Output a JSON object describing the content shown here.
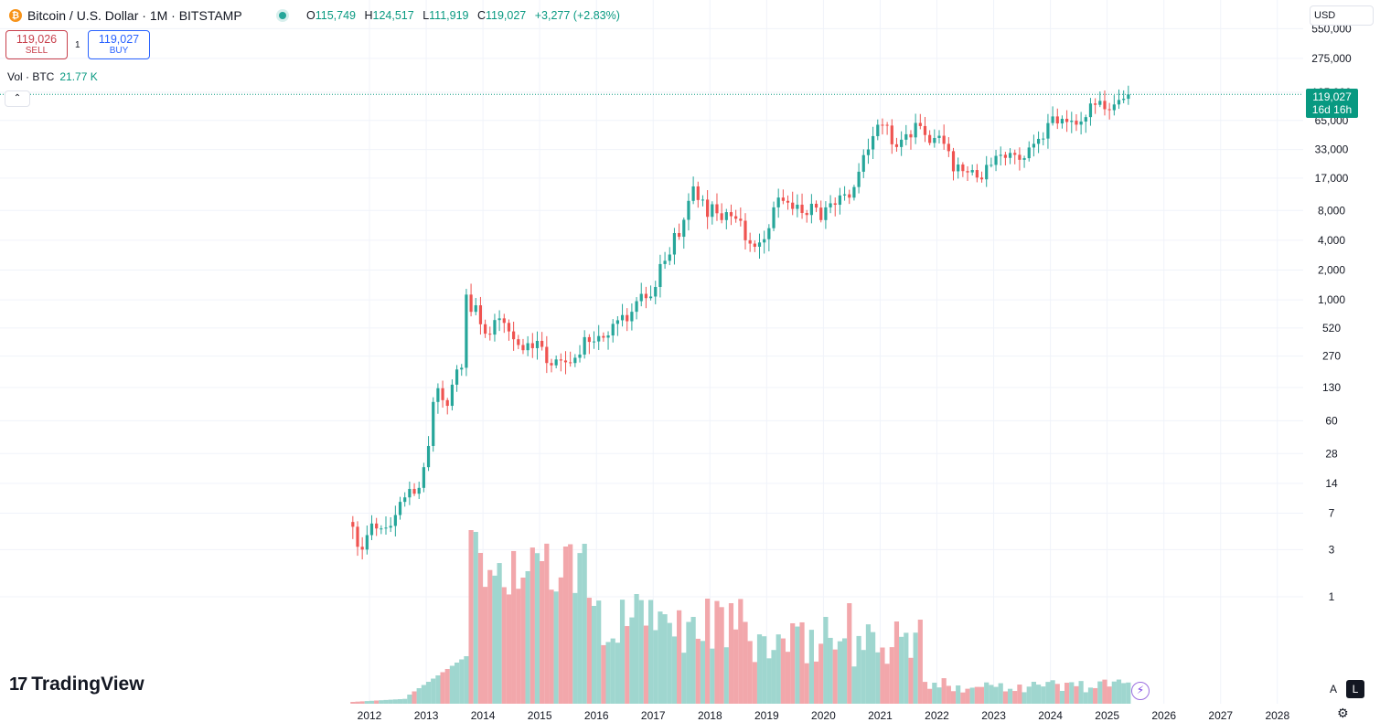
{
  "header": {
    "coin_glyph": "₿",
    "symbol": "Bitcoin / U.S. Dollar · 1M · BITSTAMP",
    "ohlc": {
      "o_label": "O",
      "o": "115,749",
      "h_label": "H",
      "h": "124,517",
      "l_label": "L",
      "l": "111,919",
      "c_label": "C",
      "c": "119,027",
      "change": "+3,277 (+2.83%)"
    }
  },
  "trade": {
    "sell_price": "119,026",
    "sell_label": "SELL",
    "spread": "1",
    "buy_price": "119,027",
    "buy_label": "BUY"
  },
  "volume_legend": {
    "label": "Vol · BTC",
    "value": "21.77 K"
  },
  "currency": "USD",
  "last_price": {
    "price": "119,027",
    "countdown": "16d 16h"
  },
  "branding": "TradingView",
  "scale_buttons": {
    "auto": "A",
    "log": "L"
  },
  "colors": {
    "up": "#26a69a",
    "down": "#ef5350",
    "vol_up": "#9fd6cf",
    "vol_down": "#f2a7ab",
    "grid": "#f0f3fa",
    "text": "#131722"
  },
  "chart_data": {
    "type": "candlestick",
    "interval": "1M",
    "y_scale": "log",
    "y_ticks": [
      1,
      3,
      7,
      14,
      28,
      60,
      130,
      270,
      520,
      1000,
      2000,
      4000,
      8000,
      17000,
      33000,
      65000,
      125000,
      275000,
      550000
    ],
    "y_tick_labels": [
      "1",
      "3",
      "7",
      "14",
      "28",
      "60",
      "130",
      "270",
      "520",
      "1,000",
      "2,000",
      "4,000",
      "8,000",
      "17,000",
      "33,000",
      "65,000",
      "125,000",
      "275,000",
      "550,000"
    ],
    "x_ticks": [
      "2012",
      "2013",
      "2014",
      "2015",
      "2016",
      "2017",
      "2018",
      "2019",
      "2020",
      "2021",
      "2022",
      "2023",
      "2024",
      "2025",
      "2026",
      "2027",
      "2028"
    ],
    "first_month": "2011-09",
    "closes": [
      5.1,
      3.2,
      3.0,
      4.2,
      5.5,
      4.9,
      4.9,
      5.0,
      5.2,
      6.7,
      9.1,
      10.1,
      12.3,
      11.0,
      12.6,
      20.4,
      33.4,
      93.0,
      128,
      97,
      85,
      139,
      198,
      206,
      1130,
      757,
      881,
      567,
      455,
      446,
      625,
      650,
      585,
      480,
      400,
      350,
      310,
      365,
      325,
      385,
      335,
      230,
      218,
      250,
      244,
      234,
      230,
      260,
      280,
      420,
      376,
      380,
      431,
      415,
      437,
      572,
      622,
      702,
      608,
      758,
      970,
      1150,
      1040,
      1080,
      1350,
      2300,
      2480,
      2870,
      4730,
      4340,
      6440,
      10000,
      14000,
      10200,
      10300,
      6900,
      9240,
      7500,
      6400,
      7700,
      7000,
      6600,
      6300,
      4000,
      3700,
      3440,
      3800,
      4100,
      5300,
      8600,
      10800,
      10000,
      9600,
      8300,
      9150,
      7550,
      7200,
      9350,
      8550,
      6400,
      8600,
      9450,
      9140,
      11350,
      11650,
      10780,
      13800,
      19700,
      29000,
      33100,
      45100,
      58800,
      58700,
      57700,
      37300,
      35000,
      41500,
      47100,
      43800,
      61300,
      57000,
      46300,
      38500,
      43200,
      45500,
      37700,
      31800,
      19900,
      23300,
      20000,
      19400,
      20500,
      17200,
      16500,
      23100,
      23100,
      28500,
      29200,
      27200,
      30500,
      29200,
      26000,
      27000,
      34600,
      37700,
      42300,
      42600,
      61100,
      71300,
      60600,
      67500,
      62700,
      64600,
      58900,
      63300,
      70200,
      96400,
      93400,
      102400,
      84400,
      82500,
      94200,
      104600,
      107500,
      119027
    ],
    "volume_note": "monthly volume bars in BTC, colored by candle direction"
  }
}
